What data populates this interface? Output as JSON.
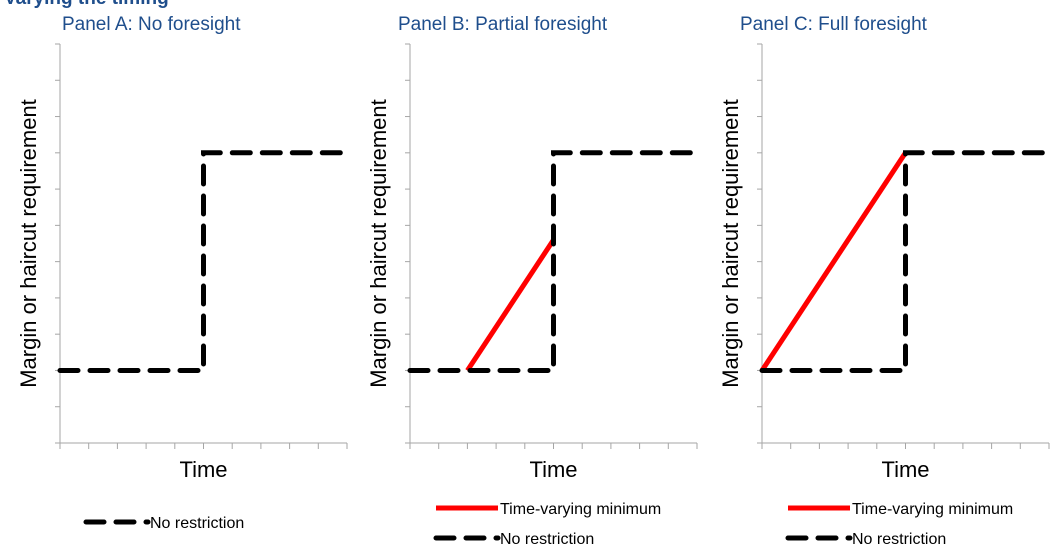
{
  "figure_title": "Varying the timing",
  "chart_data": [
    {
      "type": "line",
      "title": "Panel A: No foresight",
      "xlabel": "Time",
      "ylabel": "Margin or haircut requirement",
      "xlim": [
        0,
        10
      ],
      "ylim": [
        0,
        11
      ],
      "x_ticks": 10,
      "y_ticks": 11,
      "grid": false,
      "legend_position": "bottom",
      "series": [
        {
          "name": "No restriction",
          "color": "#000000",
          "style": "dashed",
          "points": [
            [
              0,
              2
            ],
            [
              5,
              2
            ],
            [
              5,
              8
            ],
            [
              10,
              8
            ]
          ]
        }
      ]
    },
    {
      "type": "line",
      "title": "Panel B: Partial foresight",
      "xlabel": "Time",
      "ylabel": "Margin or haircut requirement",
      "xlim": [
        0,
        10
      ],
      "ylim": [
        0,
        11
      ],
      "x_ticks": 10,
      "y_ticks": 11,
      "grid": false,
      "legend_position": "bottom",
      "series": [
        {
          "name": "Time-varying minimum",
          "color": "#ff0000",
          "style": "solid",
          "points": [
            [
              2,
              2
            ],
            [
              5,
              5.6
            ]
          ]
        },
        {
          "name": "No restriction",
          "color": "#000000",
          "style": "dashed",
          "points": [
            [
              0,
              2
            ],
            [
              5,
              2
            ],
            [
              5,
              8
            ],
            [
              10,
              8
            ]
          ]
        }
      ]
    },
    {
      "type": "line",
      "title": "Panel C: Full foresight",
      "xlabel": "Time",
      "ylabel": "Margin or haircut requirement",
      "xlim": [
        0,
        10
      ],
      "ylim": [
        0,
        11
      ],
      "x_ticks": 10,
      "y_ticks": 11,
      "grid": false,
      "legend_position": "bottom",
      "series": [
        {
          "name": "Time-varying minimum",
          "color": "#ff0000",
          "style": "solid",
          "points": [
            [
              0,
              2
            ],
            [
              5,
              8
            ]
          ]
        },
        {
          "name": "No restriction",
          "color": "#000000",
          "style": "dashed",
          "points": [
            [
              0,
              2
            ],
            [
              5,
              2
            ],
            [
              5,
              8
            ],
            [
              10,
              8
            ]
          ]
        }
      ]
    }
  ]
}
